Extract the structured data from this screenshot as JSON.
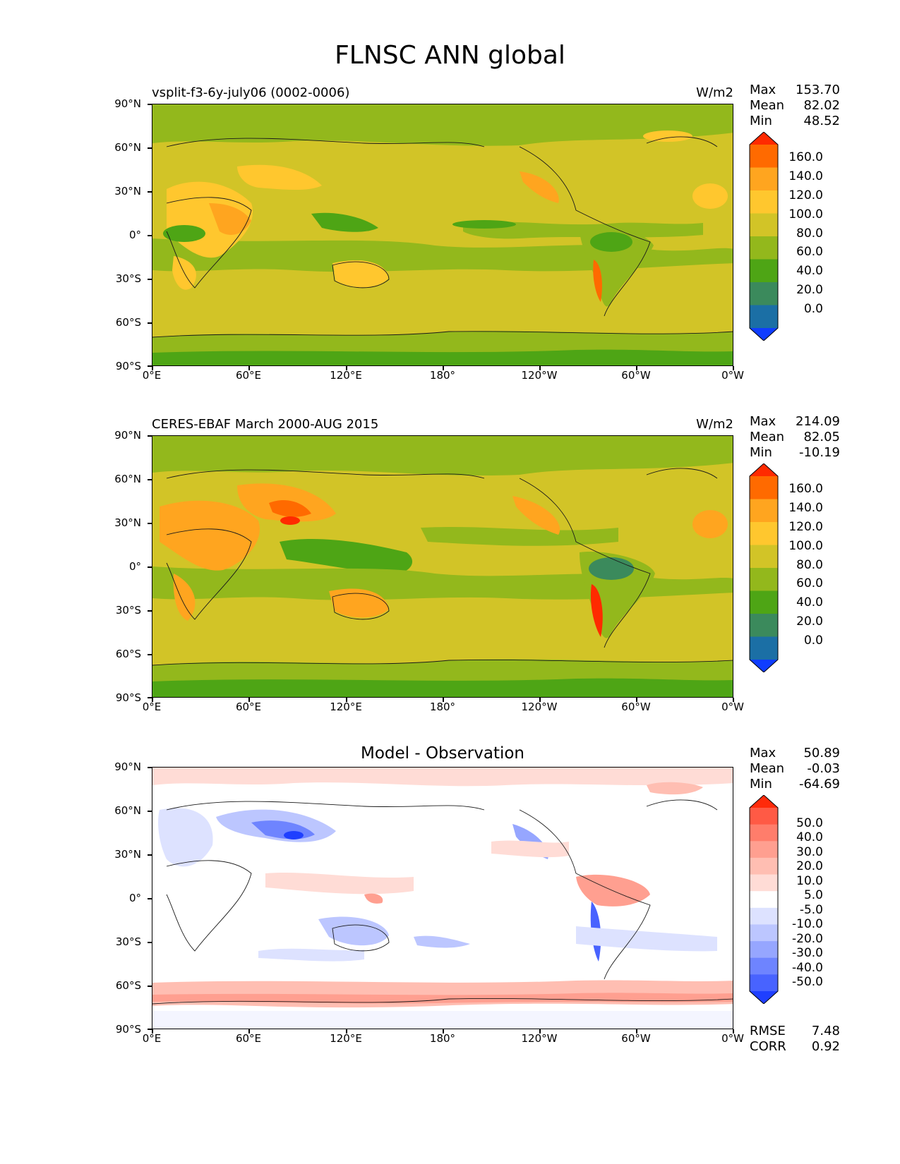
{
  "figure": {
    "title": "FLNSC ANN global"
  },
  "axes": {
    "y_ticks": [
      "90°N",
      "60°N",
      "30°N",
      "0°",
      "30°S",
      "60°S",
      "90°S"
    ],
    "x_ticks": [
      "0°E",
      "60°E",
      "120°E",
      "180°",
      "120°W",
      "60°W",
      "0°W"
    ]
  },
  "panels": [
    {
      "left_title": "vsplit-f3-6y-july06 (0002-0006)",
      "center_title": "",
      "units": "W/m2",
      "stats": [
        {
          "label": "Max",
          "value": "153.70"
        },
        {
          "label": "Mean",
          "value": "82.02"
        },
        {
          "label": "Min",
          "value": "48.52"
        }
      ],
      "colorbar": {
        "labels": [
          "160.0",
          "140.0",
          "120.0",
          "100.0",
          "80.0",
          "60.0",
          "40.0",
          "20.0",
          "0.0"
        ],
        "colors": [
          "#ff2a00",
          "#ff6a00",
          "#ffa51f",
          "#ffc72e",
          "#d2c427",
          "#93b81c",
          "#4ea515",
          "#3b8a5c",
          "#1b6fa5",
          "#0f3dff"
        ]
      },
      "extra": []
    },
    {
      "left_title": "CERES-EBAF March 2000-AUG 2015",
      "center_title": "",
      "units": "W/m2",
      "stats": [
        {
          "label": "Max",
          "value": "214.09"
        },
        {
          "label": "Mean",
          "value": "82.05"
        },
        {
          "label": "Min",
          "value": "-10.19"
        }
      ],
      "colorbar": {
        "labels": [
          "160.0",
          "140.0",
          "120.0",
          "100.0",
          "80.0",
          "60.0",
          "40.0",
          "20.0",
          "0.0"
        ],
        "colors": [
          "#ff2a00",
          "#ff6a00",
          "#ffa51f",
          "#ffc72e",
          "#d2c427",
          "#93b81c",
          "#4ea515",
          "#3b8a5c",
          "#1b6fa5",
          "#0f3dff"
        ]
      },
      "extra": []
    },
    {
      "left_title": "",
      "center_title": "Model - Observation",
      "units": "",
      "stats": [
        {
          "label": "Max",
          "value": "50.89"
        },
        {
          "label": "Mean",
          "value": "-0.03"
        },
        {
          "label": "Min",
          "value": "-64.69"
        }
      ],
      "colorbar": {
        "labels": [
          "50.0",
          "40.0",
          "30.0",
          "20.0",
          "10.0",
          "5.0",
          "-5.0",
          "-10.0",
          "-20.0",
          "-30.0",
          "-40.0",
          "-50.0"
        ],
        "colors": [
          "#ff2a0a",
          "#ff5a45",
          "#ff7d6b",
          "#ff9f90",
          "#ffbeb2",
          "#ffdcd6",
          "#ffffff",
          "#dde2ff",
          "#bcc6ff",
          "#96a6ff",
          "#6e84ff",
          "#4863ff",
          "#1f3fff"
        ]
      },
      "extra": [
        {
          "label": "RMSE",
          "value": "7.48"
        },
        {
          "label": "CORR",
          "value": "0.92"
        }
      ]
    }
  ]
}
